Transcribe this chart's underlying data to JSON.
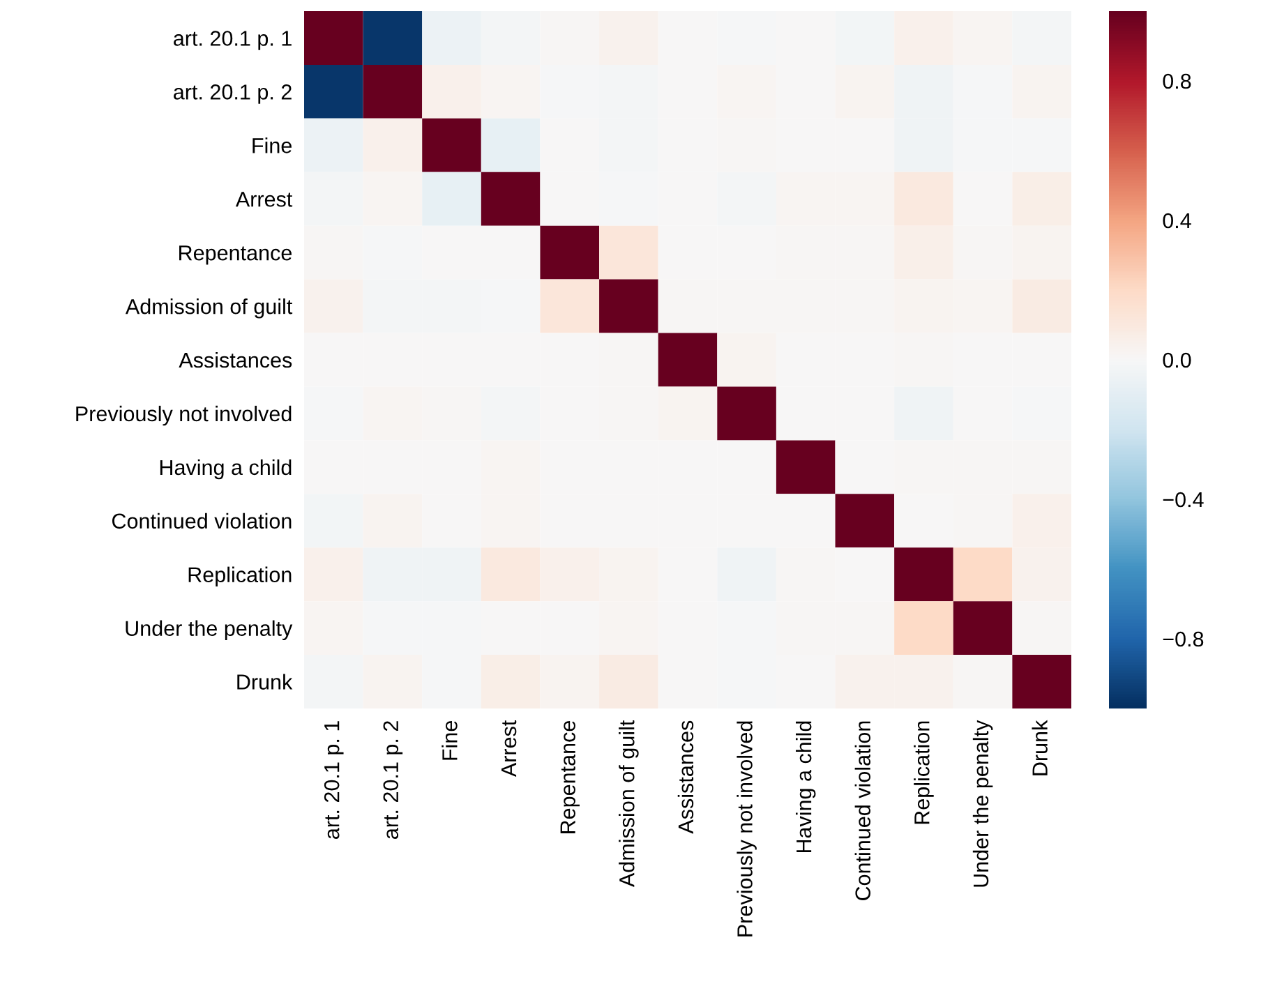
{
  "chart_data": {
    "type": "heatmap",
    "categories": [
      "art. 20.1 p. 1",
      "art. 20.1 p. 2",
      "Fine",
      "Arrest",
      "Repentance",
      "Admission of guilt",
      "Assistances",
      "Previously not involved",
      "Having a child",
      "Continued violation",
      "Replication",
      "Under the penalty",
      "Drunk"
    ],
    "y_categories": [
      "art. 20.1 p. 1",
      "art. 20.1 p. 2",
      "Fine",
      "Arrest",
      "Repentance",
      "Admission of guilt",
      "Assistances",
      "Previously not involved",
      "Having a child",
      "Continued violation",
      "Replication",
      "Under the penalty",
      "Drunk"
    ],
    "cells": [
      [
        1,
        -0.97,
        -0.06,
        -0.02,
        0.01,
        0.04,
        0,
        -0.01,
        0,
        -0.03,
        0.05,
        0.02,
        -0.02
      ],
      [
        -0.97,
        1,
        0.05,
        0.02,
        -0.01,
        -0.02,
        0,
        0.02,
        0,
        0.03,
        -0.04,
        -0.01,
        0.03
      ],
      [
        -0.06,
        0.05,
        1,
        -0.08,
        0,
        -0.02,
        0,
        0.01,
        0,
        0,
        -0.04,
        -0.01,
        -0.01
      ],
      [
        -0.02,
        0.02,
        -0.08,
        1,
        0,
        -0.01,
        0,
        -0.02,
        0.02,
        0.02,
        0.1,
        0,
        0.07
      ],
      [
        0.01,
        -0.01,
        0,
        0,
        1,
        0.12,
        0,
        0,
        0.01,
        0.01,
        0.06,
        0.01,
        0.03
      ],
      [
        0.04,
        -0.02,
        -0.02,
        -0.01,
        0.12,
        1,
        0.01,
        0.01,
        0.01,
        0.01,
        0.03,
        0.02,
        0.08
      ],
      [
        0,
        0,
        0,
        0,
        0,
        0.01,
        1,
        0.03,
        0,
        0,
        0.01,
        0,
        0
      ],
      [
        -0.01,
        0.02,
        0.01,
        -0.02,
        0,
        0.01,
        0.03,
        1,
        0,
        0,
        -0.04,
        0,
        -0.01
      ],
      [
        0,
        0,
        0,
        0.02,
        0,
        0,
        0,
        0,
        1,
        0,
        0.01,
        0.01,
        0.01
      ],
      [
        -0.03,
        0.03,
        0,
        0.02,
        0,
        0,
        0,
        0,
        0,
        1,
        0,
        0.01,
        0.05
      ],
      [
        0.05,
        -0.04,
        -0.04,
        0.1,
        0.05,
        0.03,
        0,
        -0.04,
        0.01,
        0,
        1,
        0.2,
        0.04
      ],
      [
        0.02,
        -0.01,
        -0.01,
        0,
        0,
        0.02,
        0,
        -0.01,
        0.01,
        0.01,
        0.2,
        1,
        0.01
      ],
      [
        -0.02,
        0.03,
        -0.01,
        0.07,
        0.03,
        0.08,
        0,
        -0.01,
        0,
        0.04,
        0.04,
        0.01,
        1
      ]
    ],
    "clim": [
      -1,
      1
    ],
    "cticks": [
      {
        "value": -0.8,
        "label": "−0.8"
      },
      {
        "value": -0.4,
        "label": "−0.4"
      },
      {
        "value": 0,
        "label": "0.0"
      },
      0.4,
      0.8
    ]
  }
}
